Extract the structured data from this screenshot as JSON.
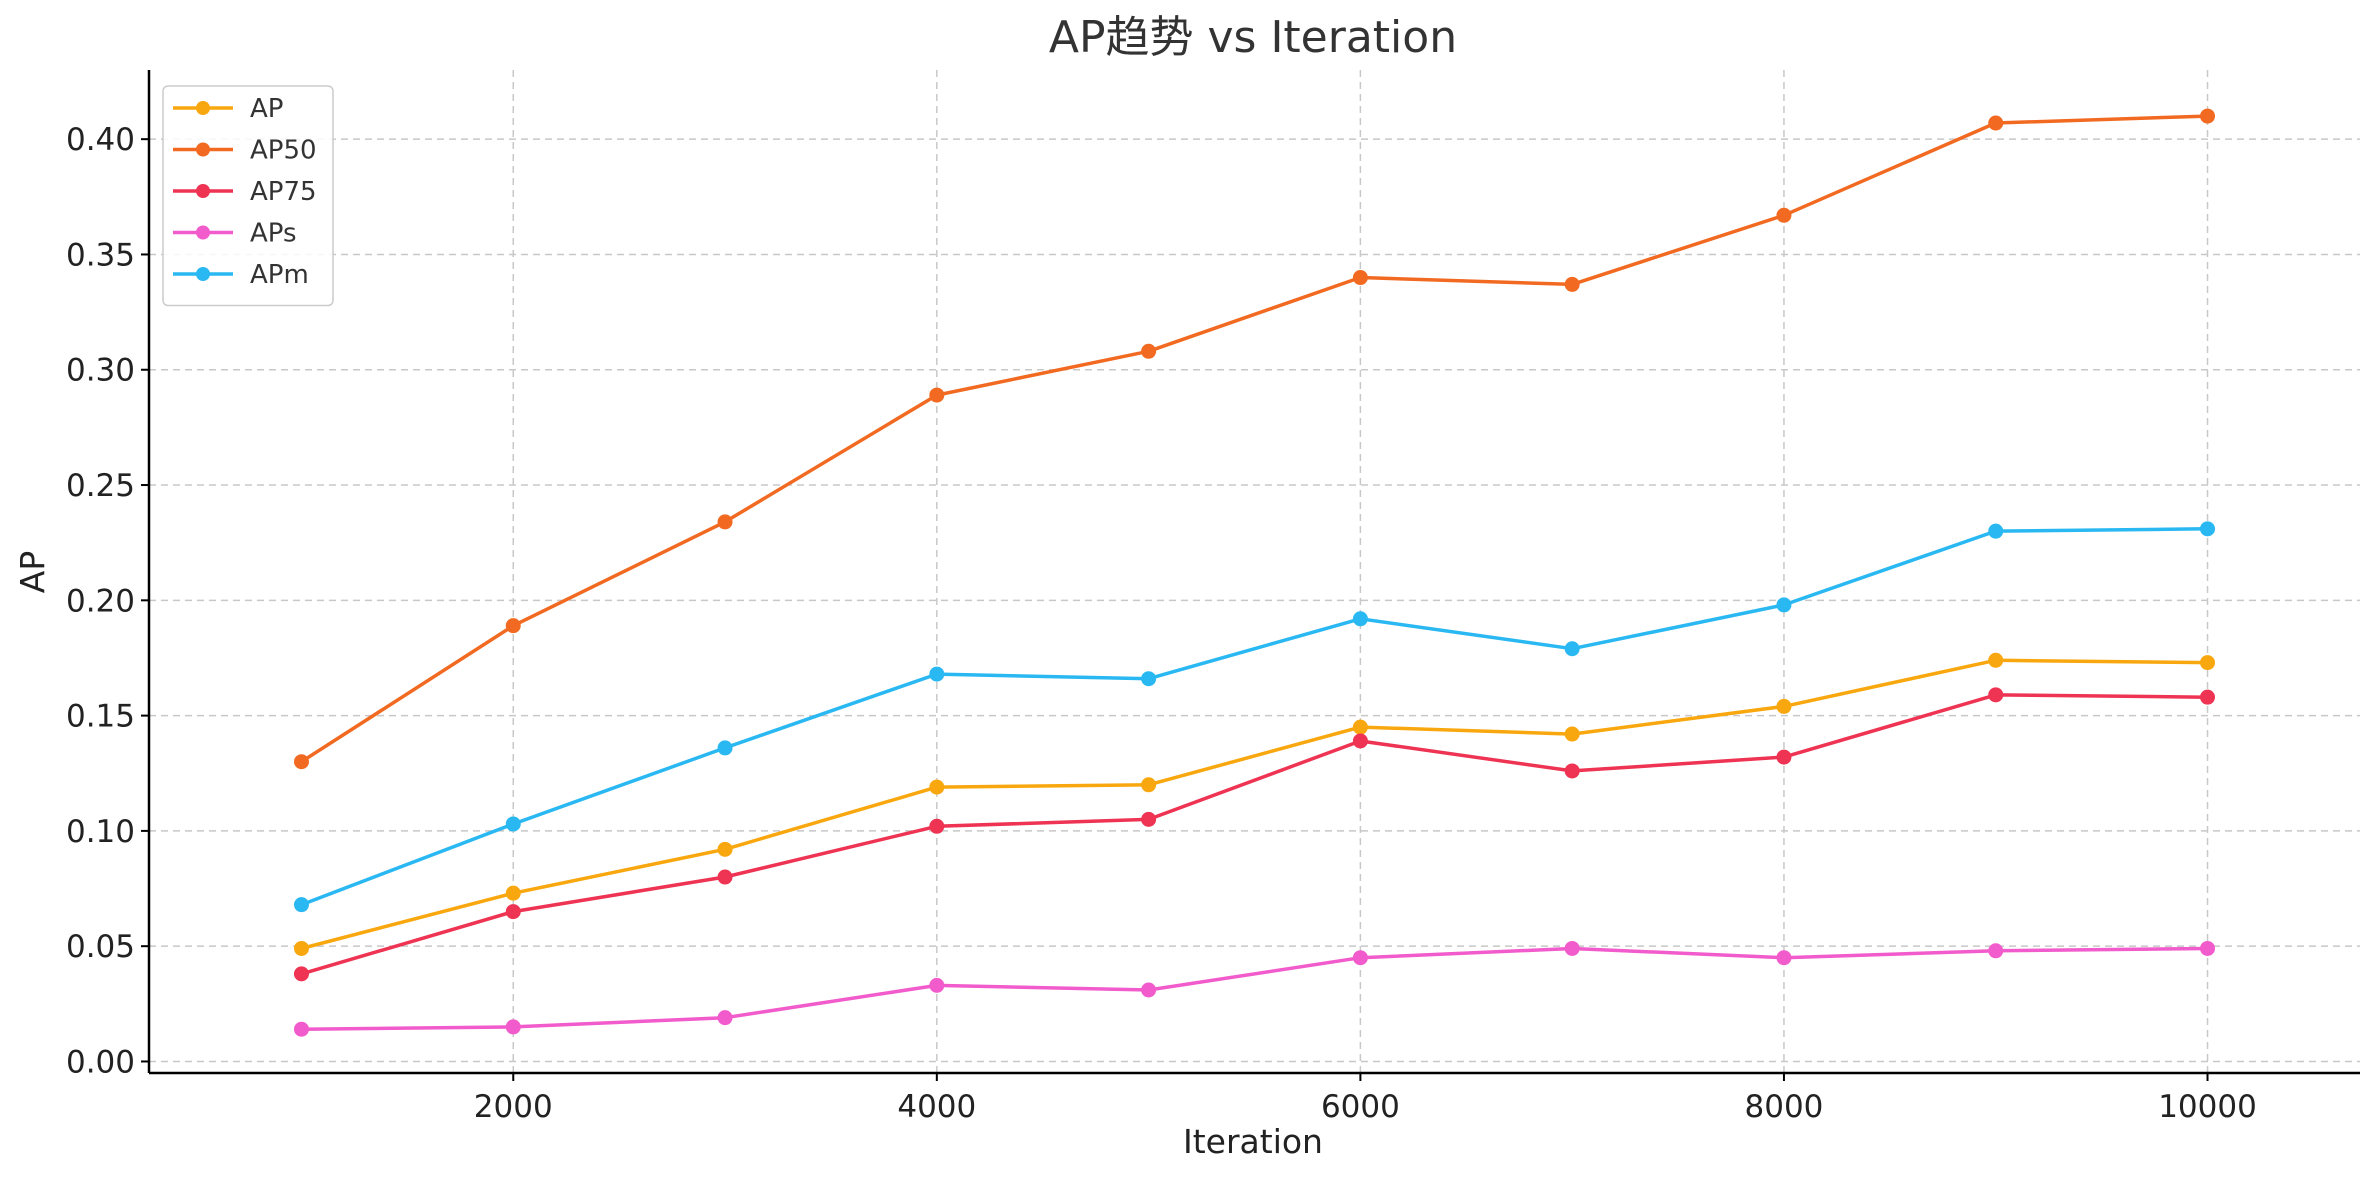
{
  "chart_data": {
    "type": "line",
    "title": "AP趋势 vs Iteration",
    "xlabel": "Iteration",
    "ylabel": "AP",
    "x": [
      1000,
      2000,
      3000,
      4000,
      5000,
      6000,
      7000,
      8000,
      9000,
      10000
    ],
    "xlim": [
      280,
      10720
    ],
    "ylim": [
      -0.005,
      0.43
    ],
    "xticks": [
      2000,
      4000,
      6000,
      8000,
      10000
    ],
    "xtick_labels": [
      "2000",
      "4000",
      "6000",
      "8000",
      "10000"
    ],
    "yticks": [
      0.0,
      0.05,
      0.1,
      0.15,
      0.2,
      0.25,
      0.3,
      0.35,
      0.4
    ],
    "ytick_labels": [
      "0.00",
      "0.05",
      "0.10",
      "0.15",
      "0.20",
      "0.25",
      "0.30",
      "0.35",
      "0.40"
    ],
    "grid": true,
    "legend_position": "top-left",
    "series": [
      {
        "name": "AP",
        "color": "#F9A70E",
        "values": [
          0.049,
          0.073,
          0.092,
          0.119,
          0.12,
          0.145,
          0.142,
          0.154,
          0.174,
          0.173
        ]
      },
      {
        "name": "AP50",
        "color": "#F26A21",
        "values": [
          0.13,
          0.189,
          0.234,
          0.289,
          0.308,
          0.34,
          0.337,
          0.367,
          0.407,
          0.41
        ]
      },
      {
        "name": "AP75",
        "color": "#EE3353",
        "values": [
          0.038,
          0.065,
          0.08,
          0.102,
          0.105,
          0.139,
          0.126,
          0.132,
          0.159,
          0.158
        ]
      },
      {
        "name": "APs",
        "color": "#F25BCB",
        "values": [
          0.014,
          0.015,
          0.019,
          0.033,
          0.031,
          0.045,
          0.049,
          0.045,
          0.048,
          0.049
        ]
      },
      {
        "name": "APm",
        "color": "#2AB8F2",
        "values": [
          0.068,
          0.103,
          0.136,
          0.168,
          0.166,
          0.192,
          0.179,
          0.198,
          0.23,
          0.231
        ]
      }
    ]
  }
}
